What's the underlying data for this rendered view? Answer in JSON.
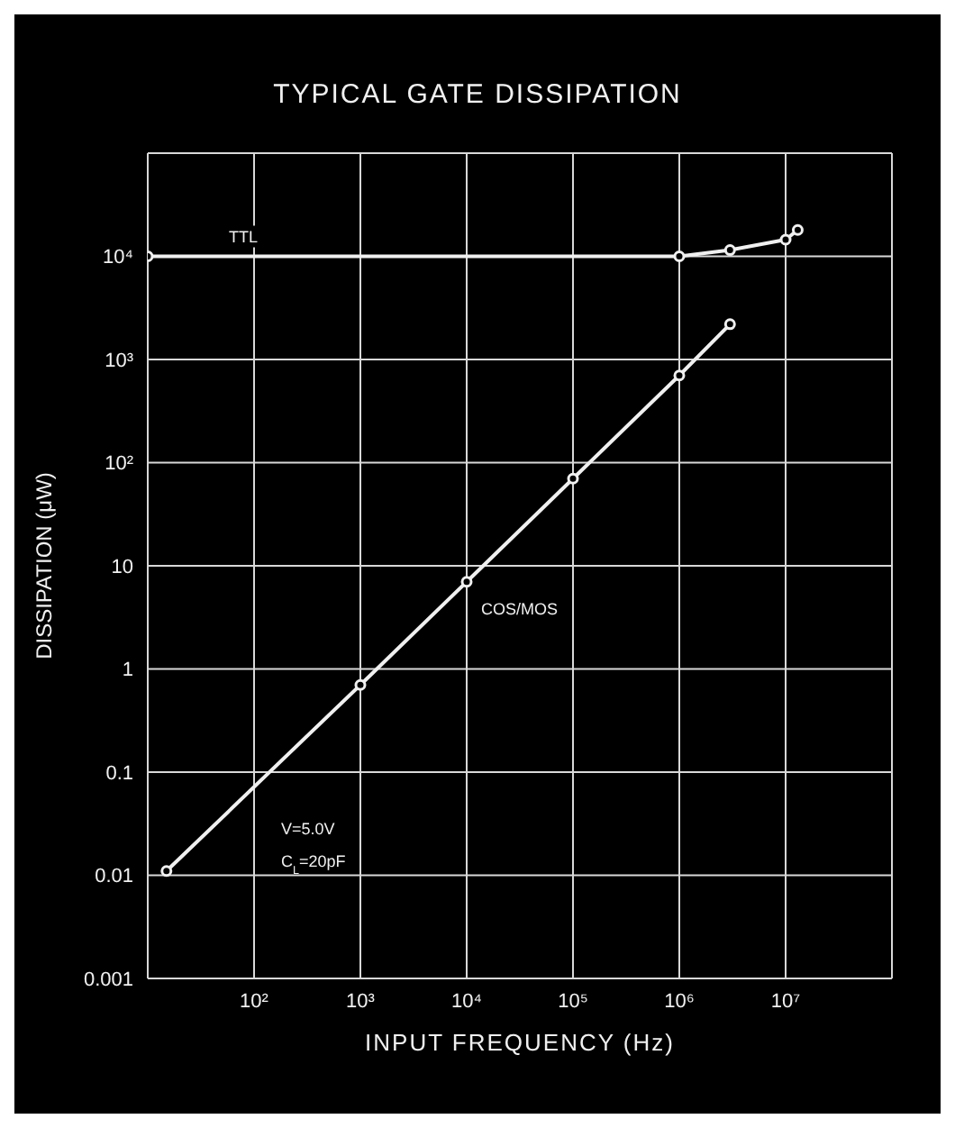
{
  "chart_data": {
    "type": "line",
    "title": "TYPICAL GATE DISSIPATION",
    "xlabel": "INPUT FREQUENCY (Hz)",
    "ylabel": "DISSIPATION (μW)",
    "log": "xy",
    "grid": true,
    "marker": "circle",
    "line_style": "solid",
    "xlim": [
      10,
      100000000
    ],
    "xticks": [
      {
        "value": 10,
        "label": null
      },
      {
        "value": 100,
        "label": "10²"
      },
      {
        "value": 1000,
        "label": "10³"
      },
      {
        "value": 10000,
        "label": "10⁴"
      },
      {
        "value": 100000,
        "label": "10⁵"
      },
      {
        "value": 1000000,
        "label": "10⁶"
      },
      {
        "value": 10000000,
        "label": "10⁷"
      },
      {
        "value": 100000000,
        "label": null
      }
    ],
    "ylim": [
      0.001,
      100000
    ],
    "yticks": [
      0.001,
      0.01,
      0.1,
      1,
      10,
      {
        "value": 100,
        "label": "10²"
      },
      {
        "value": 1000,
        "label": "10³"
      },
      {
        "value": 10000,
        "label": "10⁴"
      },
      {
        "value": 100000,
        "label": null
      }
    ],
    "series": [
      {
        "name": "TTL",
        "color": "#f0f0f0",
        "x": [
          10,
          1000000,
          3000000,
          10000000,
          13000000
        ],
        "values": [
          10000,
          10000,
          11500,
          14500,
          18000
        ]
      },
      {
        "name": "COS/MOS",
        "color": "#f0f0f0",
        "x": [
          15,
          1000,
          10000,
          100000,
          1000000,
          3000000
        ],
        "values": [
          0.011,
          0.7,
          7,
          70,
          700,
          2200
        ]
      }
    ],
    "annotations": [
      "V=5.0V",
      "C$_{L}$=20pF"
    ]
  }
}
